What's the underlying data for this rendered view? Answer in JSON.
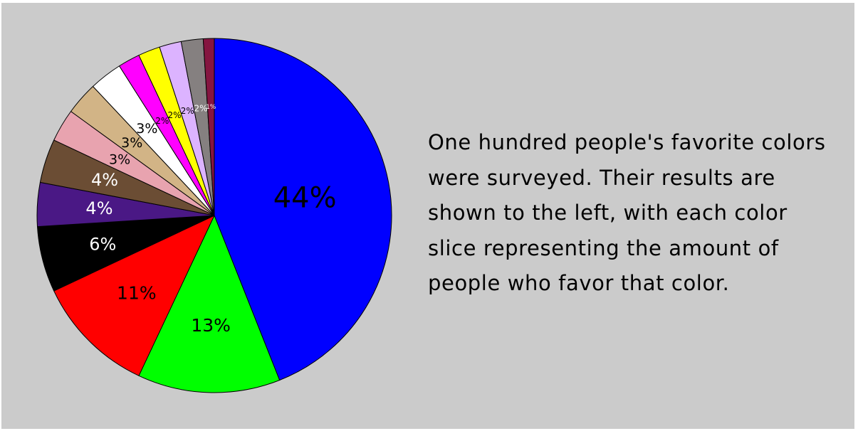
{
  "description": "One hundred people's favorite colors\nwere surveyed. Their results are\nshown to the left, with each color\nslice representing the amount of\npeople who favor that color.",
  "chart_data": {
    "type": "pie",
    "title": "",
    "legend": "none",
    "start": "top",
    "direction": "clockwise",
    "slices": [
      {
        "color": "blue",
        "value": 44,
        "label": "44%",
        "fill": "#0000ff",
        "label_color": "#000000"
      },
      {
        "color": "green",
        "value": 13,
        "label": "13%",
        "fill": "#00ff00",
        "label_color": "#000000"
      },
      {
        "color": "red",
        "value": 11,
        "label": "11%",
        "fill": "#ff0000",
        "label_color": "#000000"
      },
      {
        "color": "black",
        "value": 6,
        "label": "6%",
        "fill": "#000000",
        "label_color": "#ffffff"
      },
      {
        "color": "indigo",
        "value": 4,
        "label": "4%",
        "fill": "#4a1885",
        "label_color": "#ffffff"
      },
      {
        "color": "brown",
        "value": 4,
        "label": "4%",
        "fill": "#6b4d34",
        "label_color": "#ffffff"
      },
      {
        "color": "pink",
        "value": 3,
        "label": "3%",
        "fill": "#e8a3af",
        "label_color": "#000000"
      },
      {
        "color": "tan",
        "value": 3,
        "label": "3%",
        "fill": "#d2b486",
        "label_color": "#000000"
      },
      {
        "color": "white",
        "value": 3,
        "label": "3%",
        "fill": "#ffffff",
        "label_color": "#000000"
      },
      {
        "color": "magenta",
        "value": 2,
        "label": "2%",
        "fill": "#ff00ff",
        "label_color": "#000000"
      },
      {
        "color": "yellow",
        "value": 2,
        "label": "2%",
        "fill": "#ffff00",
        "label_color": "#000000"
      },
      {
        "color": "lavender",
        "value": 2,
        "label": "2%",
        "fill": "#dcb3ff",
        "label_color": "#000000"
      },
      {
        "color": "gray",
        "value": 2,
        "label": "2%",
        "fill": "#858080",
        "label_color": "#ffffff"
      },
      {
        "color": "maroon",
        "value": 1,
        "label": "1%",
        "fill": "#851540",
        "label_color": "#ffffff"
      }
    ]
  }
}
